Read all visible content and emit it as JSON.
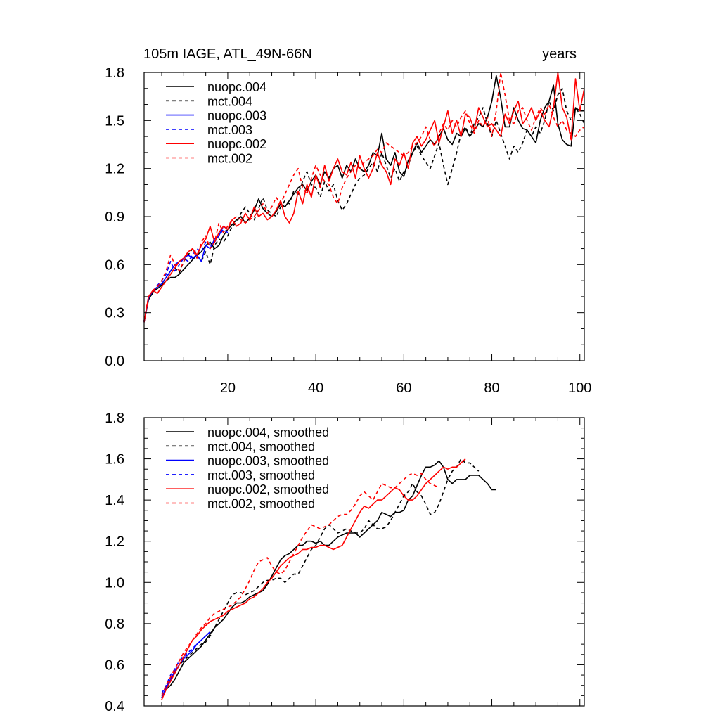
{
  "figure": {
    "title_left": "105m IAGE, ATL_49N-66N",
    "title_right": "years"
  },
  "series_style": [
    {
      "key": "nuopc.004",
      "color": "#000000",
      "dashed": false
    },
    {
      "key": "mct.004",
      "color": "#000000",
      "dashed": true
    },
    {
      "key": "nuopc.003",
      "color": "#0000ff",
      "dashed": false
    },
    {
      "key": "mct.003",
      "color": "#0000ff",
      "dashed": true
    },
    {
      "key": "nuopc.002",
      "color": "#ff0000",
      "dashed": false
    },
    {
      "key": "mct.002",
      "color": "#ff0000",
      "dashed": true
    }
  ],
  "chart_data": [
    {
      "type": "line",
      "title": "105m IAGE, ATL_49N-66N",
      "units": "years",
      "xlim": [
        1,
        101
      ],
      "ylim": [
        0,
        1.8
      ],
      "x_ticks": [
        20,
        40,
        60,
        80,
        100
      ],
      "x_tick_labels": [
        "20",
        "40",
        "60",
        "80",
        "100"
      ],
      "y_ticks": [
        0,
        0.3,
        0.6,
        0.9,
        1.2,
        1.5,
        1.8
      ],
      "y_tick_labels": [
        "0.0",
        "0.3",
        "0.6",
        "0.9",
        "1.2",
        "1.5",
        "1.8"
      ],
      "legend_position": "top-left",
      "series": [
        {
          "name": "nuopc.004",
          "x_start": 1,
          "values": [
            0.24,
            0.38,
            0.43,
            0.45,
            0.47,
            0.5,
            0.52,
            0.52,
            0.54,
            0.57,
            0.6,
            0.63,
            0.66,
            0.68,
            0.72,
            0.74,
            0.7,
            0.72,
            0.78,
            0.82,
            0.85,
            0.88,
            0.9,
            0.86,
            0.89,
            0.94,
            1.01,
            0.95,
            0.92,
            0.9,
            0.93,
            0.98,
            0.96,
            1.0,
            1.04,
            1.08,
            1.1,
            1.06,
            1.12,
            1.16,
            1.1,
            1.18,
            1.14,
            1.2,
            1.22,
            1.14,
            1.22,
            1.18,
            1.26,
            1.2,
            1.18,
            1.22,
            1.3,
            1.28,
            1.42,
            1.26,
            1.22,
            1.3,
            1.18,
            1.15,
            1.25,
            1.3,
            1.36,
            1.3,
            1.34,
            1.38,
            1.35,
            1.4,
            1.45,
            1.38,
            1.35,
            1.42,
            1.4,
            1.45,
            1.4,
            1.44,
            1.48,
            1.46,
            1.52,
            1.62,
            1.78,
            1.64,
            1.46,
            1.46,
            1.58,
            1.5,
            1.45,
            1.44,
            1.4,
            1.36,
            1.5,
            1.58,
            1.62,
            1.72,
            1.48,
            1.38,
            1.35,
            1.34,
            1.58,
            1.56,
            1.56
          ]
        },
        {
          "name": "mct.004",
          "x_start": 1,
          "values": [
            0.25,
            0.39,
            0.42,
            0.46,
            0.48,
            0.52,
            0.56,
            0.58,
            0.55,
            0.62,
            0.66,
            0.7,
            0.66,
            0.62,
            0.68,
            0.6,
            0.72,
            0.76,
            0.74,
            0.78,
            0.84,
            0.86,
            0.92,
            0.96,
            0.92,
            0.88,
            0.95,
            1.02,
            0.94,
            0.92,
            0.9,
            0.96,
            1.0,
            0.98,
            1.06,
            1.04,
            1.12,
            1.18,
            1.1,
            1.08,
            1.02,
            1.12,
            1.06,
            1.1,
            1.0,
            0.94,
            0.98,
            1.04,
            1.1,
            1.14,
            1.16,
            1.2,
            1.24,
            1.18,
            1.3,
            1.22,
            1.14,
            1.2,
            1.12,
            1.18,
            1.22,
            1.3,
            1.34,
            1.28,
            1.24,
            1.2,
            1.28,
            1.36,
            1.22,
            1.1,
            1.2,
            1.3,
            1.42,
            1.46,
            1.4,
            1.48,
            1.52,
            1.58,
            1.48,
            1.4,
            1.5,
            1.42,
            1.34,
            1.26,
            1.34,
            1.3,
            1.36,
            1.44,
            1.4,
            1.46,
            1.42,
            1.5,
            1.62,
            1.56,
            1.66,
            1.7,
            1.56,
            1.5,
            1.58,
            1.54,
            1.48
          ]
        },
        {
          "name": "nuopc.003",
          "x_start": 1,
          "values": [
            0.24,
            0.39,
            0.44,
            0.46,
            0.48,
            0.52,
            0.56,
            0.6,
            0.62,
            0.64,
            0.66,
            0.64,
            0.66,
            0.62,
            0.72,
            0.7,
            0.76,
            0.78,
            0.84,
            0.82
          ]
        },
        {
          "name": "mct.003",
          "x_start": 1,
          "values": [
            0.25,
            0.4,
            0.43,
            0.47,
            0.5,
            0.54,
            0.62,
            0.56,
            0.6,
            0.64,
            0.62,
            0.66,
            0.7,
            0.68,
            0.74,
            0.72,
            0.74,
            0.78,
            0.82,
            0.8
          ]
        },
        {
          "name": "nuopc.002",
          "x_start": 1,
          "values": [
            0.24,
            0.4,
            0.44,
            0.42,
            0.46,
            0.5,
            0.54,
            0.58,
            0.62,
            0.64,
            0.68,
            0.7,
            0.66,
            0.72,
            0.76,
            0.84,
            0.74,
            0.8,
            0.84,
            0.82,
            0.88,
            0.84,
            0.86,
            0.92,
            0.88,
            0.96,
            0.9,
            0.92,
            0.88,
            0.9,
            0.94,
            1.0,
            0.9,
            0.86,
            0.92,
            1.06,
            0.98,
            1.1,
            1.02,
            1.16,
            1.08,
            1.22,
            1.12,
            1.2,
            1.26,
            1.18,
            1.16,
            1.24,
            1.14,
            1.28,
            1.2,
            1.14,
            1.2,
            1.3,
            1.22,
            1.18,
            1.1,
            1.26,
            1.22,
            1.3,
            1.2,
            1.36,
            1.4,
            1.34,
            1.38,
            1.44,
            1.5,
            1.36,
            1.46,
            1.56,
            1.42,
            1.5,
            1.4,
            1.54,
            1.52,
            1.44,
            1.58,
            1.52,
            1.46,
            1.48,
            1.44,
            1.4,
            1.54,
            1.48,
            1.56,
            1.62,
            1.48,
            1.52,
            1.58,
            1.5,
            1.56,
            1.5,
            1.46,
            1.58,
            1.8,
            1.58,
            1.52,
            1.38,
            1.76,
            1.56,
            1.7
          ]
        },
        {
          "name": "mct.002",
          "x_start": 1,
          "values": [
            0.25,
            0.4,
            0.44,
            0.46,
            0.5,
            0.56,
            0.66,
            0.6,
            0.56,
            0.62,
            0.68,
            0.7,
            0.64,
            0.74,
            0.78,
            0.7,
            0.74,
            0.86,
            0.8,
            0.84,
            0.88,
            0.9,
            0.88,
            0.86,
            0.88,
            0.9,
            0.94,
            0.98,
            0.92,
            0.96,
            1.02,
            0.98,
            1.04,
            1.1,
            1.16,
            1.2,
            1.08,
            1.04,
            1.14,
            1.22,
            1.16,
            1.12,
            1.1,
            1.02,
            0.98,
            1.08,
            1.14,
            1.18,
            1.22,
            1.2,
            1.24,
            1.26,
            1.28,
            1.32,
            1.3,
            1.36,
            1.34,
            1.32,
            1.3,
            1.28,
            1.3,
            1.34,
            1.36,
            1.4,
            1.46,
            1.38,
            1.34,
            1.42,
            1.48,
            1.44,
            1.5,
            1.46,
            1.52,
            1.56,
            1.48,
            1.42,
            1.5,
            1.46,
            1.52,
            1.4,
            1.56,
            1.8,
            1.66,
            1.5,
            1.48,
            1.56,
            1.58,
            1.5,
            1.44,
            1.52,
            1.58,
            1.54,
            1.6,
            1.52,
            1.46,
            1.5,
            1.44,
            1.42,
            1.4,
            1.44,
            1.46
          ]
        }
      ]
    },
    {
      "type": "line",
      "xlim": [
        1,
        101
      ],
      "ylim": [
        0.4,
        1.8
      ],
      "y_ticks": [
        0.4,
        0.6,
        0.8,
        1.0,
        1.2,
        1.4,
        1.6,
        1.8
      ],
      "y_tick_labels": [
        "0.4",
        "0.6",
        "0.8",
        "1.0",
        "1.2",
        "1.4",
        "1.6",
        "1.8"
      ],
      "legend_position": "top-left",
      "series": [
        {
          "name": "nuopc.004, smoothed",
          "x_start": 5,
          "values": [
            0.44,
            0.48,
            0.5,
            0.53,
            0.57,
            0.61,
            0.63,
            0.65,
            0.67,
            0.69,
            0.72,
            0.75,
            0.78,
            0.8,
            0.82,
            0.85,
            0.88,
            0.9,
            0.9,
            0.91,
            0.93,
            0.94,
            0.95,
            0.96,
            0.99,
            1.03,
            1.07,
            1.11,
            1.13,
            1.14,
            1.16,
            1.18,
            1.18,
            1.2,
            1.2,
            1.19,
            1.2,
            1.18,
            1.18,
            1.2,
            1.22,
            1.23,
            1.24,
            1.24,
            1.24,
            1.22,
            1.24,
            1.26,
            1.28,
            1.3,
            1.34,
            1.33,
            1.32,
            1.34,
            1.34,
            1.35,
            1.4,
            1.42,
            1.47,
            1.52,
            1.56,
            1.56,
            1.57,
            1.59,
            1.56,
            1.5,
            1.48,
            1.5,
            1.5,
            1.5,
            1.52,
            1.52,
            1.52,
            1.5,
            1.48,
            1.45,
            1.45
          ]
        },
        {
          "name": "mct.004, smoothed",
          "x_start": 5,
          "values": [
            0.45,
            0.49,
            0.53,
            0.56,
            0.6,
            0.62,
            0.64,
            0.66,
            0.68,
            0.7,
            0.71,
            0.74,
            0.78,
            0.82,
            0.86,
            0.9,
            0.94,
            0.95,
            0.95,
            0.94,
            0.95,
            0.96,
            0.98,
            1.0,
            1.01,
            1.01,
            1.02,
            1.02,
            1.0,
            1.02,
            1.04,
            1.04,
            1.08,
            1.12,
            1.16,
            1.18,
            1.22,
            1.26,
            1.28,
            1.26,
            1.24,
            1.25,
            1.26,
            1.25,
            1.24,
            1.24,
            1.26,
            1.3,
            1.28,
            1.26,
            1.26,
            1.27,
            1.3,
            1.34,
            1.38,
            1.42,
            1.44,
            1.48,
            1.44,
            1.42,
            1.38,
            1.33,
            1.34,
            1.38,
            1.44,
            1.5,
            1.54,
            1.56,
            1.6,
            1.58,
            1.58,
            1.56,
            1.54
          ]
        },
        {
          "name": "nuopc.003, smoothed",
          "x_start": 5,
          "values": [
            0.44,
            0.49,
            0.53,
            0.57,
            0.6,
            0.63,
            0.65,
            0.67,
            0.7,
            0.72,
            0.74,
            0.76
          ]
        },
        {
          "name": "mct.003, smoothed",
          "x_start": 5,
          "values": [
            0.46,
            0.5,
            0.55,
            0.58,
            0.62,
            0.64,
            0.66,
            0.68,
            0.7,
            0.72,
            0.74,
            0.76
          ]
        },
        {
          "name": "nuopc.002, smoothed",
          "x_start": 5,
          "values": [
            0.43,
            0.48,
            0.52,
            0.56,
            0.6,
            0.64,
            0.68,
            0.72,
            0.74,
            0.77,
            0.79,
            0.81,
            0.82,
            0.83,
            0.84,
            0.86,
            0.87,
            0.88,
            0.89,
            0.9,
            0.92,
            0.93,
            0.95,
            0.97,
            1.0,
            1.02,
            1.05,
            1.08,
            1.1,
            1.12,
            1.13,
            1.14,
            1.16,
            1.16,
            1.17,
            1.17,
            1.18,
            1.18,
            1.17,
            1.16,
            1.17,
            1.18,
            1.22,
            1.26,
            1.3,
            1.34,
            1.37,
            1.36,
            1.38,
            1.4,
            1.4,
            1.42,
            1.44,
            1.46,
            1.45,
            1.42,
            1.4,
            1.4,
            1.42,
            1.45,
            1.48,
            1.5,
            1.52,
            1.54,
            1.56,
            1.55,
            1.56,
            1.56,
            1.58,
            1.6
          ]
        },
        {
          "name": "mct.002, smoothed",
          "x_start": 5,
          "values": [
            0.45,
            0.5,
            0.54,
            0.58,
            0.62,
            0.66,
            0.69,
            0.72,
            0.75,
            0.78,
            0.8,
            0.83,
            0.85,
            0.86,
            0.87,
            0.88,
            0.89,
            0.91,
            0.93,
            0.97,
            1.01,
            1.06,
            1.1,
            1.11,
            1.12,
            1.08,
            1.05,
            1.04,
            1.06,
            1.1,
            1.14,
            1.18,
            1.22,
            1.25,
            1.28,
            1.27,
            1.26,
            1.27,
            1.28,
            1.3,
            1.32,
            1.33,
            1.33,
            1.35,
            1.38,
            1.42,
            1.44,
            1.42,
            1.4,
            1.44,
            1.48,
            1.47,
            1.46,
            1.46,
            1.48,
            1.5,
            1.52,
            1.53,
            1.52,
            1.53,
            1.5,
            1.48,
            1.47,
            1.46
          ]
        }
      ]
    }
  ]
}
